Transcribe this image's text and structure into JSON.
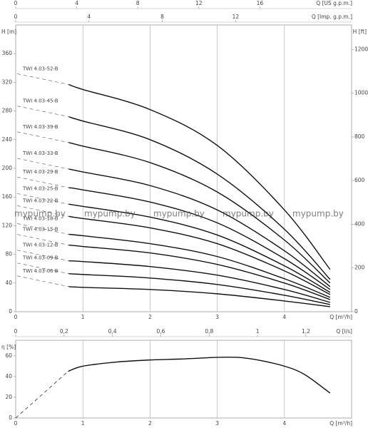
{
  "chart_data": [
    {
      "type": "line",
      "x": [
        0.79,
        1,
        2,
        3,
        4,
        4.68
      ],
      "xlim": [
        0,
        5
      ],
      "xticks": [
        0,
        1,
        2,
        3,
        4
      ],
      "x_label": "Q [m³/h]",
      "ylim": [
        0,
        400
      ],
      "yticks": [
        0,
        40,
        80,
        120,
        160,
        200,
        240,
        280,
        320,
        360
      ],
      "y_label": "H [m]",
      "y2lim": [
        0,
        1312.3
      ],
      "y2ticks": [
        0,
        200,
        400,
        600,
        800,
        1000,
        1200
      ],
      "y2_label": "H [ft]",
      "top_axes": [
        {
          "label": "Q [US g.p.m.]",
          "lim": [
            0,
            22.01
          ],
          "ticks": [
            0,
            4,
            8,
            12,
            16
          ]
        },
        {
          "label": "Q [Imp. g.p.m.]",
          "lim": [
            0,
            18.33
          ],
          "ticks": [
            0,
            4,
            8,
            12
          ]
        }
      ],
      "grid": true,
      "color": "#111",
      "series": [
        {
          "name": "TWI 4.03-52-B",
          "values": [
            317,
            310,
            282,
            232,
            142,
            59
          ]
        },
        {
          "name": "TWI 4.03-45-B",
          "values": [
            272,
            266,
            240,
            192,
            115,
            45
          ]
        },
        {
          "name": "TWI 4.03-39-B",
          "values": [
            236,
            231,
            208,
            167,
            100,
            40
          ]
        },
        {
          "name": "TWI 4.03-33-B",
          "values": [
            199,
            195,
            176,
            142,
            85,
            35
          ]
        },
        {
          "name": "TWI 4.03-29-B",
          "values": [
            173,
            170,
            153,
            124,
            74,
            31
          ]
        },
        {
          "name": "TWI 4.03-25-B",
          "values": [
            150,
            147,
            132,
            107,
            64,
            27
          ]
        },
        {
          "name": "TWI 4.03-22-B",
          "values": [
            133,
            130,
            117,
            95,
            57,
            24
          ]
        },
        {
          "name": "TWI 4.03-18-B",
          "values": [
            108,
            106,
            95,
            77,
            46,
            20
          ]
        },
        {
          "name": "TWI 4.03-15-B",
          "values": [
            93,
            91,
            82,
            66,
            40,
            17
          ]
        },
        {
          "name": "TWI 4.03-12-B",
          "values": [
            71,
            70,
            63,
            51,
            31,
            13
          ]
        },
        {
          "name": "TWI 4.03-09-B",
          "values": [
            53,
            52,
            47,
            38,
            23,
            10
          ]
        },
        {
          "name": "TWI 4.03-06-B",
          "values": [
            35,
            34,
            31,
            25,
            15,
            7
          ]
        }
      ]
    },
    {
      "type": "line",
      "xlim": [
        0,
        5
      ],
      "xticks": [
        0,
        1,
        2,
        3,
        4
      ],
      "x_label": "Q [m³/h]",
      "ylim": [
        0,
        75
      ],
      "yticks": [
        0,
        20,
        40,
        60
      ],
      "y_label": "η [%]",
      "top_axes": [
        {
          "label": "Q [l/s]",
          "lim": [
            0,
            1.3889
          ],
          "ticks": [
            0,
            {
              "value": 0.2,
              "label": "0,2"
            },
            {
              "value": 0.4,
              "label": "0,4"
            },
            {
              "value": 0.6,
              "label": "0,6"
            },
            {
              "value": 0.8,
              "label": "0,8"
            },
            1,
            {
              "value": 1.2,
              "label": "1,2"
            }
          ]
        }
      ],
      "grid": true,
      "color": "#111",
      "series": [
        {
          "style": "dashed",
          "x": [
            0,
            0.78
          ],
          "values": [
            0,
            45
          ]
        },
        {
          "x": [
            0.78,
            1,
            1.5,
            2,
            2.5,
            3,
            3.3,
            3.6,
            4,
            4.3,
            4.68
          ],
          "values": [
            45,
            50,
            54,
            56,
            57,
            58.5,
            58.5,
            56,
            50,
            42,
            24
          ]
        }
      ]
    }
  ],
  "watermark": [
    "mypump.by",
    "mypump.by",
    "mypump.by",
    "mypump.by",
    "mypump.by"
  ]
}
